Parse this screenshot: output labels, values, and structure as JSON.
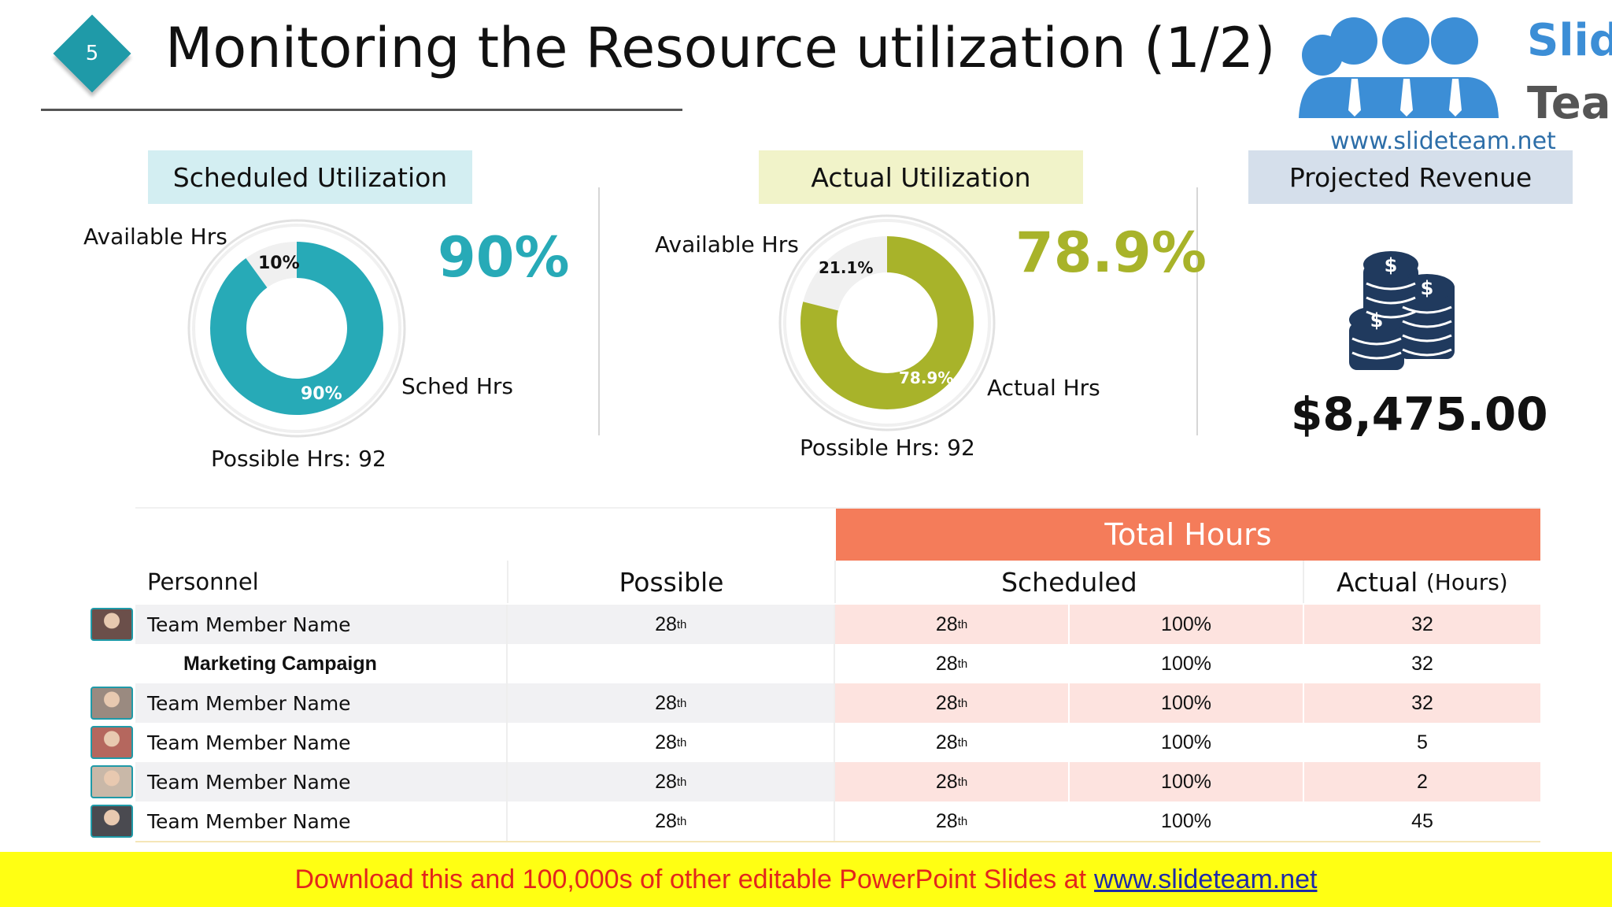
{
  "header": {
    "slide_number": "5",
    "title": "Monitoring the Resource utilization (1/2)"
  },
  "logo": {
    "line1": "Slide",
    "line2": "Team",
    "url": "www.slideteam.net"
  },
  "scheduled": {
    "heading": "Scheduled Utilization",
    "available_label": "Available Hrs",
    "sched_label": "Sched Hrs",
    "possible_label": "Possible Hrs: 92",
    "big_value": "90%",
    "slice_available": "10%",
    "slice_main": "90%",
    "fraction": 0.9,
    "color": "#27aab7"
  },
  "actual": {
    "heading": "Actual Utilization",
    "available_label": "Available Hrs",
    "actual_label": "Actual Hrs",
    "possible_label": "Possible Hrs:  92",
    "big_value": "78.9%",
    "slice_available": "21.1%",
    "slice_main": "78.9%",
    "fraction": 0.789,
    "color": "#a8b32a"
  },
  "revenue": {
    "heading": "Projected Revenue",
    "amount": "$8,475.00",
    "coin_symbol": "$"
  },
  "table": {
    "group_header": "Total Hours",
    "columns": {
      "personnel": "Personnel",
      "possible": "Possible",
      "scheduled": "Scheduled",
      "actual": "Actual",
      "actual_unit": "(Hours)"
    },
    "rows": [
      {
        "name": "Team Member Name",
        "possible": "28",
        "possible_sup": "th",
        "scheduled": "28",
        "scheduled_sup": "th",
        "pct": "100%",
        "actual": "32"
      },
      {
        "name": "Marketing Campaign",
        "possible": "",
        "possible_sup": "",
        "scheduled": "28",
        "scheduled_sup": "th",
        "pct": "100%",
        "actual": "32"
      },
      {
        "name": "Team Member Name",
        "possible": "28",
        "possible_sup": "th",
        "scheduled": "28",
        "scheduled_sup": "th",
        "pct": "100%",
        "actual": "32"
      },
      {
        "name": "Team Member Name",
        "possible": "28",
        "possible_sup": "th",
        "scheduled": "28",
        "scheduled_sup": "th",
        "pct": "100%",
        "actual": "5"
      },
      {
        "name": "Team Member Name",
        "possible": "28",
        "possible_sup": "th",
        "scheduled": "28",
        "scheduled_sup": "th",
        "pct": "100%",
        "actual": "2"
      },
      {
        "name": "Team Member Name",
        "possible": "28",
        "possible_sup": "th",
        "scheduled": "28",
        "scheduled_sup": "th",
        "pct": "100%",
        "actual": "45"
      }
    ]
  },
  "footer": {
    "text": "Download this and 100,000s of other editable PowerPoint Slides at",
    "link": "www.slideteam.net"
  },
  "colors": {
    "accent_teal": "#1f9aa8",
    "total_hours_header": "#f47c5a",
    "row_highlight": "#fde3df",
    "row_grey": "#f1f1f3"
  }
}
